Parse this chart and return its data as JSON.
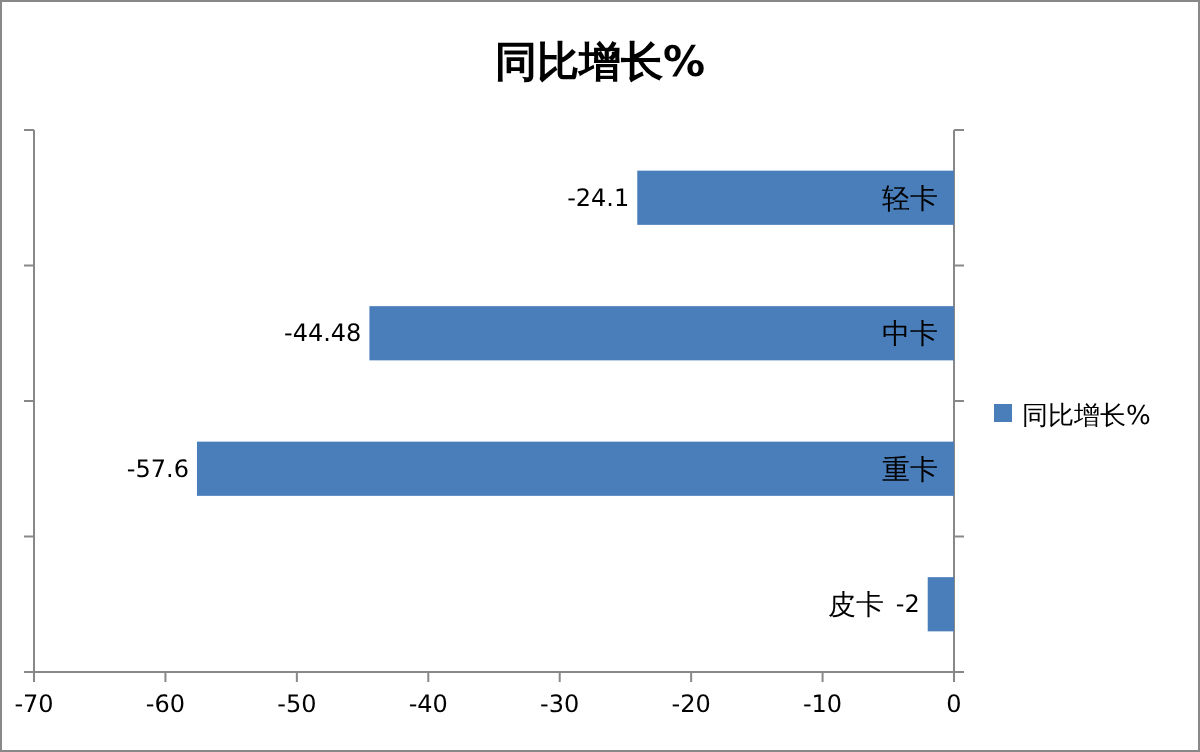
{
  "chart_data": {
    "type": "bar",
    "orientation": "horizontal",
    "title": "同比增长%",
    "categories": [
      "轻卡",
      "中卡",
      "重卡",
      "皮卡"
    ],
    "series": [
      {
        "name": "同比增长%",
        "color": "#4a7ebb",
        "values": [
          -24.1,
          -44.48,
          -57.6,
          -2
        ]
      }
    ],
    "xlim": [
      -70,
      0
    ],
    "xticks": [
      -70,
      -60,
      -50,
      -40,
      -30,
      -20,
      -10,
      0
    ],
    "data_labels": true,
    "legend": "right",
    "grid": false
  }
}
